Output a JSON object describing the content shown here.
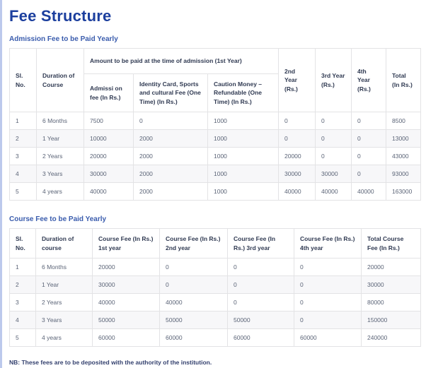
{
  "page": {
    "title": "Fee Structure",
    "note": "NB: These fees are to be deposited with the authority of the institution."
  },
  "colors": {
    "title_blue": "#1c3f9e",
    "heading_blue": "#3a5cad",
    "header_text": "#303a52",
    "cell_text": "#5b6477",
    "table_border": "#e3e3e5",
    "stripe_bg": "#f7f7f9",
    "page_edge": "#bcc9ec"
  },
  "admission_table": {
    "heading": "Admission Fee to be Paid Yearly",
    "group_header": "Amount to be paid at the time of admission (1st Year)",
    "headers": {
      "sl_no": "Sl. No.",
      "duration": "Duration of Course",
      "admission_fee": "Admissi on fee (In Rs.)",
      "identity_card": "Identity Card, Sports and cultural Fee (One Time) (In Rs.)",
      "caution_money": "Caution Money – Refundable (One Time) (In Rs.)",
      "year2": "2nd Year (Rs.)",
      "year3": "3rd Year (Rs.)",
      "year4": "4th Year (Rs.)",
      "total": "Total (In Rs.)"
    },
    "rows": [
      [
        "1",
        "6 Months",
        "7500",
        "0",
        "1000",
        "0",
        "0",
        "0",
        "8500"
      ],
      [
        "2",
        "1 Year",
        "10000",
        "2000",
        "1000",
        "0",
        "0",
        "0",
        "13000"
      ],
      [
        "3",
        "2 Years",
        "20000",
        "2000",
        "1000",
        "20000",
        "0",
        "0",
        "43000"
      ],
      [
        "4",
        "3 Years",
        "30000",
        "2000",
        "1000",
        "30000",
        "30000",
        "0",
        "93000"
      ],
      [
        "5",
        "4 years",
        "40000",
        "2000",
        "1000",
        "40000",
        "40000",
        "40000",
        "163000"
      ]
    ]
  },
  "course_table": {
    "heading": "Course Fee to be Paid Yearly",
    "headers": {
      "sl_no": "Sl. No.",
      "duration": "Duration of course",
      "year1": "Course Fee (In Rs.) 1st year",
      "year2": "Course Fee (In Rs.) 2nd year",
      "year3": "Course Fee (In Rs.) 3rd year",
      "year4": "Course Fee (In Rs.) 4th year",
      "total": "Total Course Fee (In Rs.)"
    },
    "rows": [
      [
        "1",
        "6 Months",
        "20000",
        "0",
        "0",
        "0",
        "20000"
      ],
      [
        "2",
        "1 Year",
        "30000",
        "0",
        "0",
        "0",
        "30000"
      ],
      [
        "3",
        "2 Years",
        "40000",
        "40000",
        "0",
        "0",
        "80000"
      ],
      [
        "4",
        "3 Years",
        "50000",
        "50000",
        "50000",
        "0",
        "150000"
      ],
      [
        "5",
        "4 years",
        "60000",
        "60000",
        "60000",
        "60000",
        "240000"
      ]
    ]
  }
}
